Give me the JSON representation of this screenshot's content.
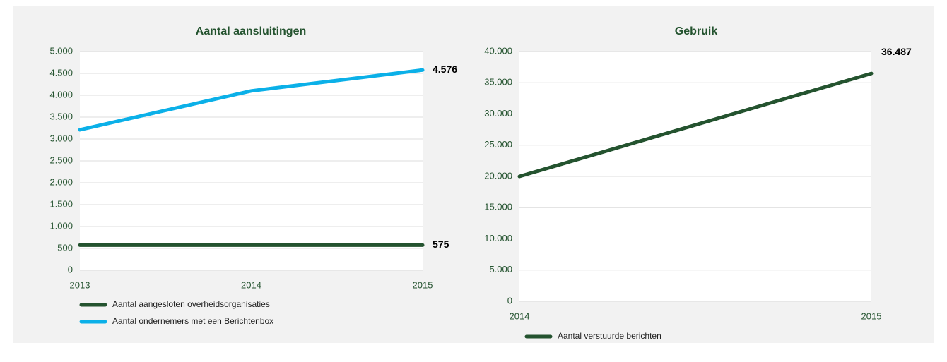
{
  "chart_data": [
    {
      "type": "line",
      "title": "Aantal aansluitingen",
      "categories": [
        "2013",
        "2014",
        "2015"
      ],
      "series": [
        {
          "name": "Aantal aangesloten overheidsorganisaties",
          "color": "#24532f",
          "values": [
            575,
            575,
            575
          ],
          "value_labels": [
            null,
            null,
            "575"
          ]
        },
        {
          "name": "Aantal ondernemers met een Berichtenbox",
          "color": "#0bb0e8",
          "values": [
            3210,
            4100,
            4576
          ],
          "value_labels": [
            null,
            null,
            "4.576"
          ]
        }
      ],
      "ylim": [
        0,
        5000
      ],
      "yticks": [
        0,
        500,
        {
          "value": 1000,
          "label": "1.000"
        },
        {
          "value": 1500,
          "label": "1.500"
        },
        {
          "value": 2000,
          "label": "2.000"
        },
        {
          "value": 2500,
          "label": "2.500"
        },
        {
          "value": 3000,
          "label": "3.000"
        },
        {
          "value": 3500,
          "label": "3.500"
        },
        {
          "value": 4000,
          "label": "4.000"
        },
        {
          "value": 4500,
          "label": "4.500"
        },
        {
          "value": 5000,
          "label": "5.000"
        }
      ],
      "grid": true
    },
    {
      "type": "line",
      "title": "Gebruik",
      "categories": [
        "2014",
        "2015"
      ],
      "series": [
        {
          "name": "Aantal verstuurde berichten",
          "color": "#24532f",
          "values": [
            20000,
            36487
          ],
          "value_labels": [
            null,
            "36.487"
          ]
        }
      ],
      "ylim": [
        0,
        40000
      ],
      "yticks": [
        0,
        {
          "value": 5000,
          "label": "5.000"
        },
        {
          "value": 10000,
          "label": "10.000"
        },
        {
          "value": 15000,
          "label": "15.000"
        },
        {
          "value": 20000,
          "label": "20.000"
        },
        {
          "value": 25000,
          "label": "25.000"
        },
        {
          "value": 30000,
          "label": "30.000"
        },
        {
          "value": 35000,
          "label": "35.000"
        },
        {
          "value": 40000,
          "label": "40.000"
        }
      ],
      "grid": true
    }
  ]
}
